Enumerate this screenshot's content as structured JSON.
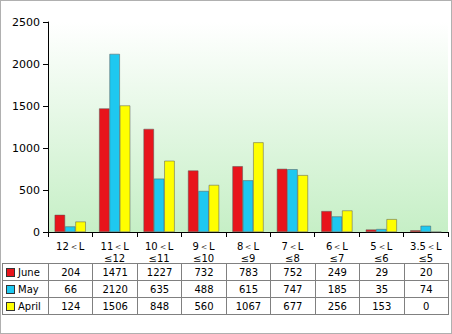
{
  "chart_data": {
    "type": "bar",
    "categories": [
      "12＜L",
      "11＜L≤12",
      "10＜L≤11",
      "9＜L≤10",
      "8＜L≤9",
      "7＜L≤8",
      "6＜L≤7",
      "5＜L≤6",
      "3.5＜L≤5"
    ],
    "series": [
      {
        "name": "June",
        "color": "#e8141b",
        "values": [
          204,
          1471,
          1227,
          732,
          783,
          752,
          249,
          29,
          20
        ]
      },
      {
        "name": "May",
        "color": "#1ec8f0",
        "values": [
          66,
          2120,
          635,
          488,
          615,
          747,
          185,
          35,
          74
        ]
      },
      {
        "name": "April",
        "color": "#ffff00",
        "values": [
          124,
          1506,
          848,
          560,
          1067,
          677,
          256,
          153,
          0
        ]
      }
    ],
    "ylim": [
      0,
      2500
    ],
    "yticks": [
      0,
      500,
      1000,
      1500,
      2000,
      2500
    ],
    "grid": false
  }
}
